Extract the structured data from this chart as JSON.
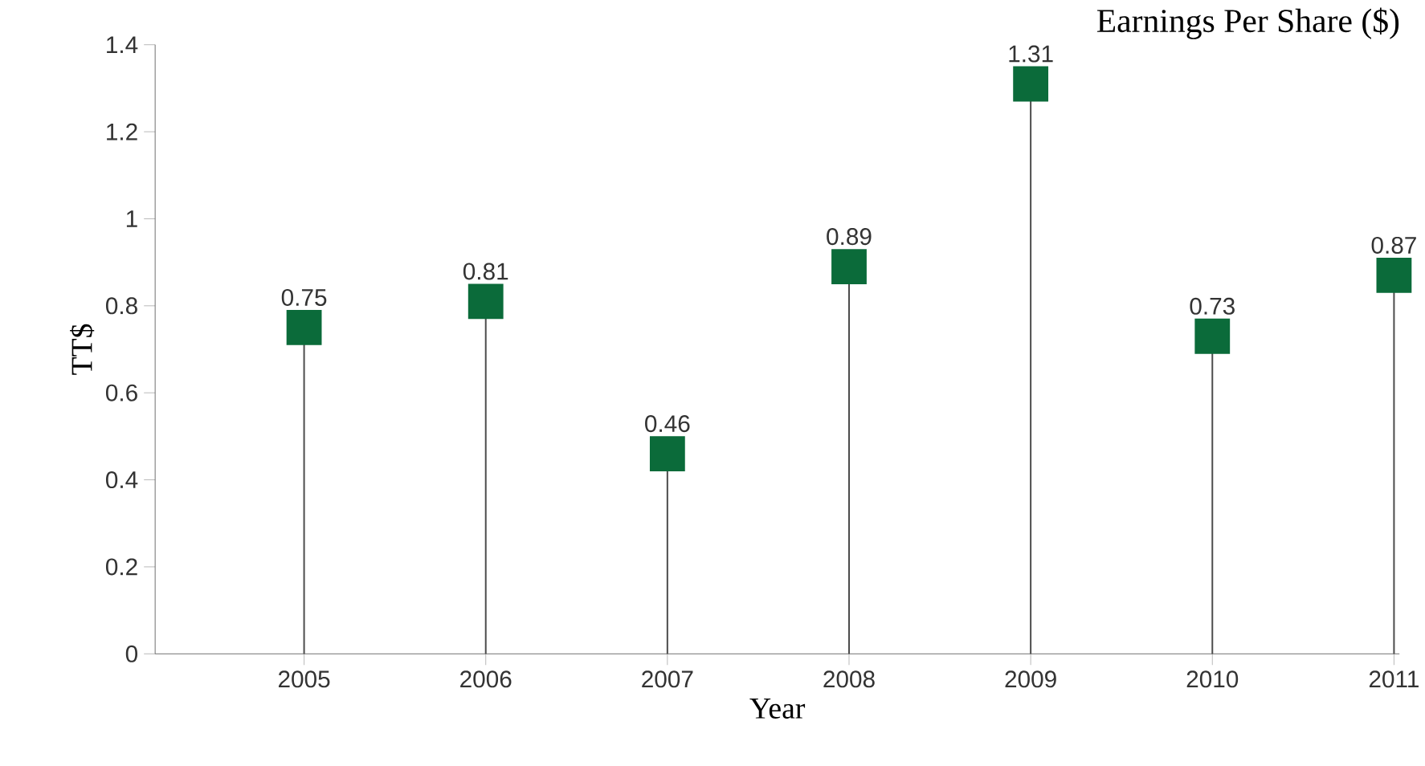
{
  "chart_data": {
    "type": "lollipop",
    "title": "Earnings Per Share ($)",
    "xlabel": "Year",
    "ylabel": "TT$",
    "categories": [
      "2005",
      "2006",
      "2007",
      "2008",
      "2009",
      "2010",
      "2011"
    ],
    "values": [
      0.75,
      0.81,
      0.46,
      0.89,
      1.31,
      0.73,
      0.87
    ],
    "color": "#0b6b3a",
    "marker": "square",
    "data_labels": true,
    "ylim": [
      0,
      1.4
    ],
    "yticks": [
      0,
      0.2,
      0.4,
      0.6,
      0.8,
      1,
      1.2,
      1.4
    ]
  }
}
